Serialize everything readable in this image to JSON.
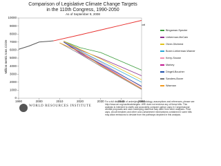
{
  "chart_data": {
    "type": "line",
    "title": "Comparison of Legislative Climate Change Targets",
    "title_line2": "in the 110th Congress, 1990-2050",
    "subtitle": "As of September 9, 2008",
    "y_label": "Million metric tons CO2e",
    "annotations": [
      "Historical emissions",
      "Business as usual"
    ],
    "xlim": [
      1990,
      2050
    ],
    "xticks": [
      1990,
      2000,
      2010,
      2020,
      2030,
      2040,
      2050
    ],
    "ylim": [
      0,
      10000
    ],
    "yticks": [
      0,
      1000,
      2000,
      3000,
      4000,
      5000,
      6000,
      7000,
      8000,
      9000,
      10000
    ],
    "legend": "right",
    "series": [
      {
        "name": "Historical emissions",
        "color": "#555555",
        "x": [
          1990,
          1995,
          2000,
          2005,
          2007
        ],
        "values": [
          6100,
          6500,
          7000,
          7100,
          7150
        ],
        "in_legend": false
      },
      {
        "name": "Business as usual",
        "color": "#e8312f",
        "x": [
          2007,
          2020,
          2030,
          2040,
          2050
        ],
        "values": [
          7150,
          7900,
          8500,
          9100,
          9700
        ],
        "in_legend": false
      },
      {
        "name": "Bingaman-Specter",
        "color": "#3a9b3a",
        "x": [
          2012,
          2020,
          2030,
          2050
        ],
        "values": [
          7100,
          6300,
          5700,
          3500
        ]
      },
      {
        "name": "Lieberman-McCain",
        "color": "#8e2f8e",
        "x": [
          2012,
          2020,
          2030,
          2050
        ],
        "values": [
          7100,
          6000,
          5000,
          2800
        ]
      },
      {
        "name": "Olver-Gilchrest",
        "color": "#e0c21a",
        "x": [
          2012,
          2020,
          2030,
          2050
        ],
        "values": [
          7100,
          6100,
          4900,
          2300
        ]
      },
      {
        "name": "Boxer-Lieberman-Warner",
        "color": "#2aa7d8",
        "x": [
          2012,
          2020,
          2030,
          2050
        ],
        "values": [
          7000,
          5900,
          4600,
          2000
        ]
      },
      {
        "name": "Kerry-Snowe",
        "color": "#f08fb0",
        "x": [
          2012,
          2020,
          2030,
          2050
        ],
        "values": [
          7000,
          5800,
          4500,
          1400
        ]
      },
      {
        "name": "Markey",
        "color": "#c2188f",
        "x": [
          2012,
          2020,
          2030,
          2050
        ],
        "values": [
          7000,
          5600,
          4200,
          1200
        ]
      },
      {
        "name": "Dingell-Boucher",
        "color": "#1f4fa8",
        "x": [
          2012,
          2020,
          2030,
          2050
        ],
        "values": [
          7000,
          5700,
          4300,
          1500
        ]
      },
      {
        "name": "Sanders-Boxer",
        "color": "#777777",
        "x": [
          2010,
          2020,
          2030,
          2050
        ],
        "values": [
          6900,
          5500,
          4000,
          1100
        ]
      },
      {
        "name": "Waxman",
        "color": "#f29a1f",
        "x": [
          2010,
          2020,
          2030,
          2050
        ],
        "values": [
          6900,
          5800,
          4100,
          1200
        ]
      }
    ],
    "organization": "WORLD RESOURCES INSTITUTE",
    "note": "For a full discussion of underlying methodology, assumptions and references, please see http://www.wri.org/usclimatetargets. WRI does not endorse any of these bills. This analysis is intended to clarify and accurately compare carbon caps in Congressional climate proposals and uses underlying data that may differ from other analyses. Price caps, circuit breakers and other cost-containment mechanisms contained in some bills may allow emissions to deviate from the pathways depicted in this analysis."
  }
}
